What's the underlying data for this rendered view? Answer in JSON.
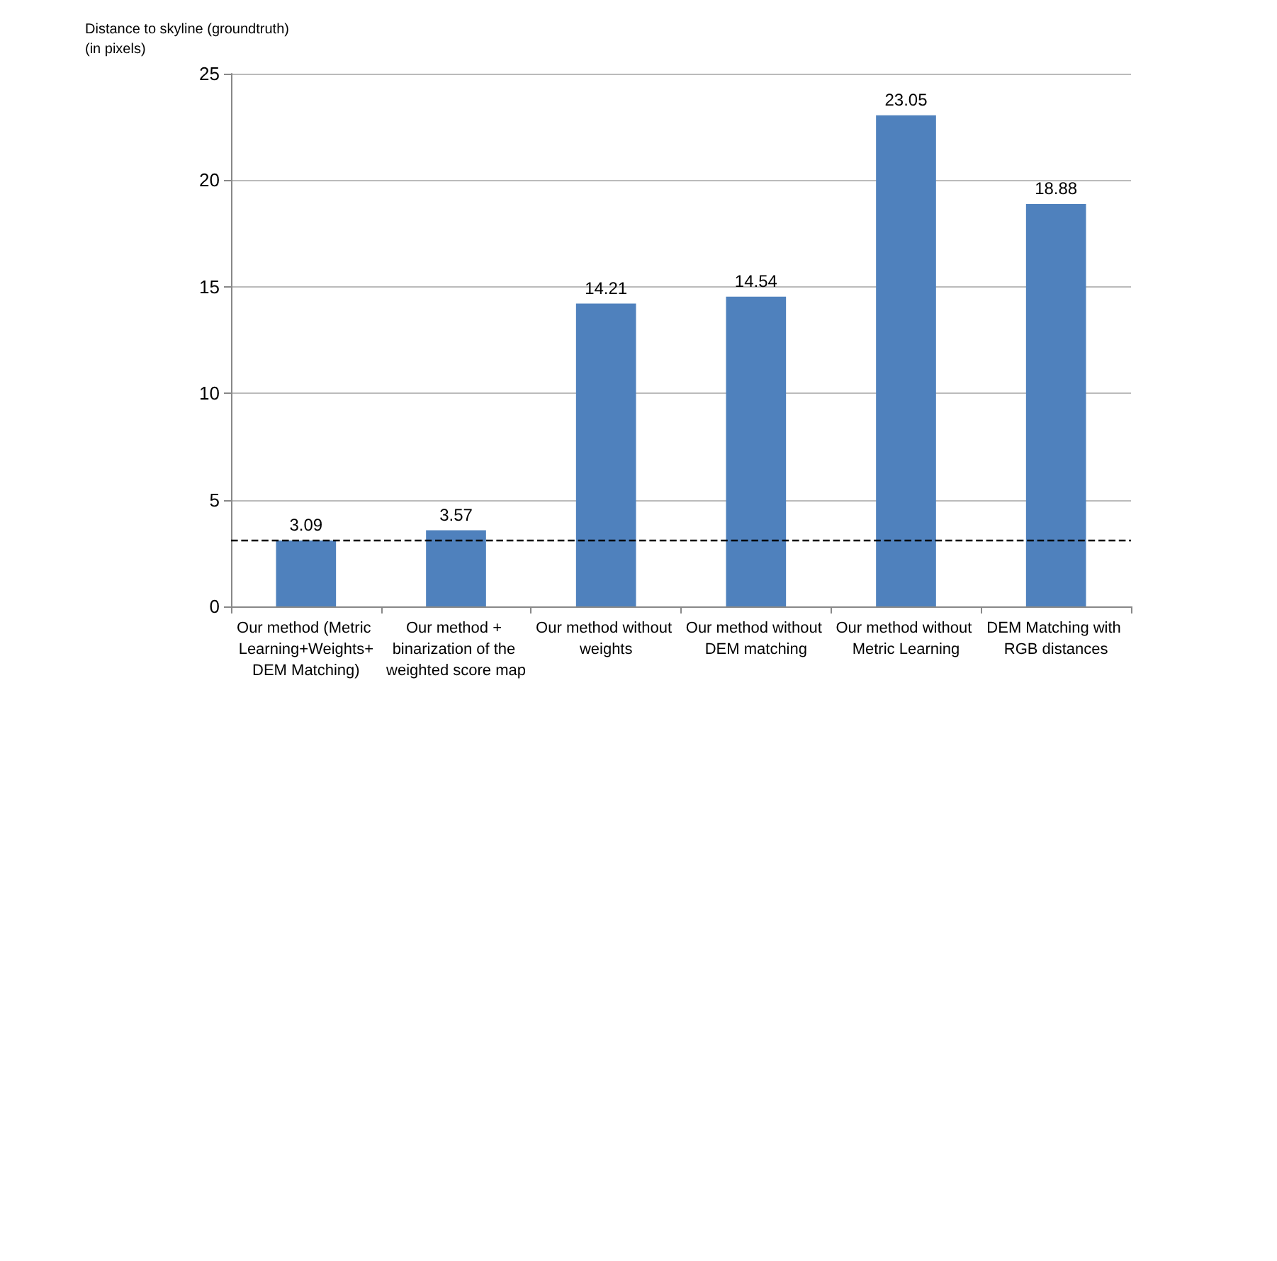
{
  "chart_data": {
    "type": "bar",
    "ylabel": "Distance to skyline (groundtruth)\n(in pixels)",
    "categories": [
      "Our method (Metric Learning+Weights+DEM Matching)",
      "Our method + binarization of the weighted score map",
      "Our method without weights",
      "Our method without DEM matching",
      "Our method without Metric Learning",
      "DEM Matching with RGB distances"
    ],
    "values": [
      3.09,
      3.57,
      14.21,
      14.54,
      23.05,
      18.88
    ],
    "color": "#4f81bd",
    "ylim": [
      0,
      25
    ],
    "yticks": [
      0,
      5,
      10,
      15,
      20,
      25
    ],
    "grid": "y",
    "data_labels": true,
    "ref_lines": [
      {
        "axis": "y",
        "value": 3.09,
        "color": "#000000",
        "line_style": "dashed"
      }
    ]
  }
}
